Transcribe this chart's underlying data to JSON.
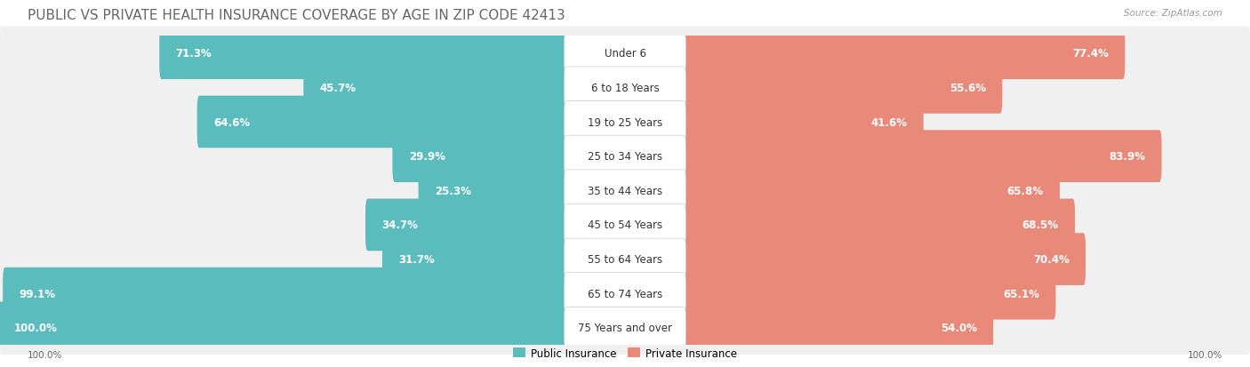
{
  "title": "PUBLIC VS PRIVATE HEALTH INSURANCE COVERAGE BY AGE IN ZIP CODE 42413",
  "source": "Source: ZipAtlas.com",
  "categories": [
    "Under 6",
    "6 to 18 Years",
    "19 to 25 Years",
    "25 to 34 Years",
    "35 to 44 Years",
    "45 to 54 Years",
    "55 to 64 Years",
    "65 to 74 Years",
    "75 Years and over"
  ],
  "public_values": [
    71.3,
    45.7,
    64.6,
    29.9,
    25.3,
    34.7,
    31.7,
    99.1,
    100.0
  ],
  "private_values": [
    77.4,
    55.6,
    41.6,
    83.9,
    65.8,
    68.5,
    70.4,
    65.1,
    54.0
  ],
  "public_color": "#5bbcbd",
  "private_color": "#e8897a",
  "public_color_light": "#a8dede",
  "private_color_light": "#f0b8ad",
  "public_label": "Public Insurance",
  "private_label": "Private Insurance",
  "row_bg_color": "#f0f0f0",
  "row_divider_color": "#ffffff",
  "max_value": 100.0,
  "title_fontsize": 11,
  "value_fontsize": 8.5,
  "category_fontsize": 8.5,
  "axis_label_left": "100.0%",
  "axis_label_right": "100.0%",
  "background_color": "#ffffff"
}
